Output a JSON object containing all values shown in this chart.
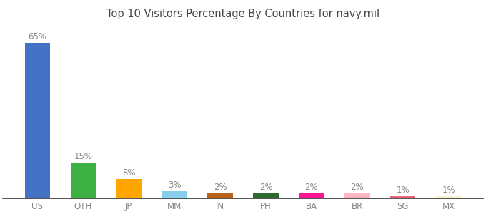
{
  "categories": [
    "US",
    "OTH",
    "JP",
    "MM",
    "IN",
    "PH",
    "BA",
    "BR",
    "SG",
    "MX"
  ],
  "values": [
    65,
    15,
    8,
    3,
    2,
    2,
    2,
    2,
    1,
    1
  ],
  "bar_colors": [
    "#4472C4",
    "#3CB043",
    "#FFA500",
    "#87CEEB",
    "#B8621B",
    "#2D6A2D",
    "#FF1493",
    "#FFB6C1",
    "#E8627A",
    "#F5F0C8"
  ],
  "title": "Top 10 Visitors Percentage By Countries for navy.mil",
  "title_fontsize": 10.5,
  "ylim": [
    0,
    72
  ],
  "label_fontsize": 8.5,
  "tick_fontsize": 8.5,
  "background_color": "#ffffff",
  "label_color": "#888888",
  "tick_color": "#888888",
  "bar_width": 0.55
}
